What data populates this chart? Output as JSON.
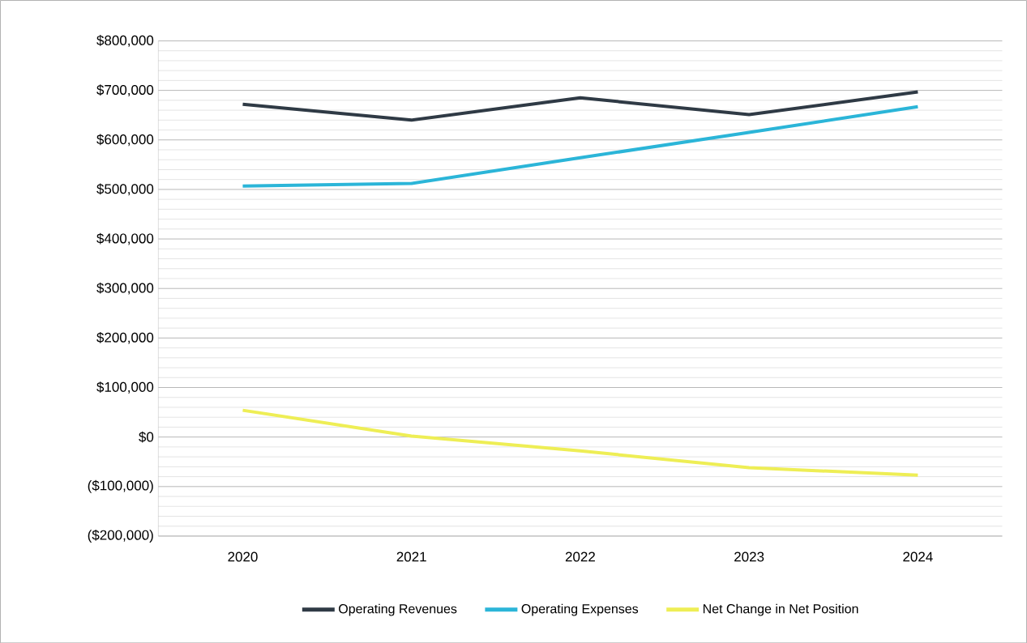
{
  "chart_data": {
    "type": "line",
    "categories": [
      "2020",
      "2021",
      "2022",
      "2023",
      "2024"
    ],
    "series": [
      {
        "name": "Operating Revenues",
        "color": "#2f3a45",
        "values": [
          672000,
          640000,
          685000,
          651000,
          697000
        ]
      },
      {
        "name": "Operating Expenses",
        "color": "#2bb5d8",
        "values": [
          507000,
          512000,
          564000,
          615000,
          667000
        ]
      },
      {
        "name": "Net Change in Net Position",
        "color": "#eeee55",
        "values": [
          54000,
          2000,
          -28000,
          -62000,
          -77000
        ]
      }
    ],
    "ylim": [
      -200000,
      800000
    ],
    "yticks": [
      {
        "value": -200000,
        "label": "($200,000)"
      },
      {
        "value": -100000,
        "label": "($100,000)"
      },
      {
        "value": 0,
        "label": "$0"
      },
      {
        "value": 100000,
        "label": "$100,000"
      },
      {
        "value": 200000,
        "label": "$200,000"
      },
      {
        "value": 300000,
        "label": "$300,000"
      },
      {
        "value": 400000,
        "label": "$400,000"
      },
      {
        "value": 500000,
        "label": "$500,000"
      },
      {
        "value": 600000,
        "label": "$600,000"
      },
      {
        "value": 700000,
        "label": "$700,000"
      },
      {
        "value": 800000,
        "label": "$800,000"
      }
    ],
    "grid": "y",
    "legend": "bottom",
    "marker": "none",
    "line_style": "solid"
  }
}
